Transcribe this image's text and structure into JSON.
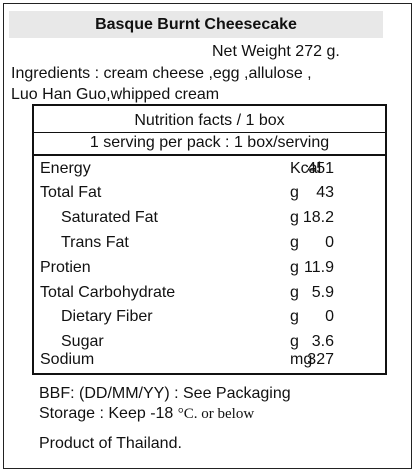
{
  "product": {
    "title": "Basque Burnt Cheesecake",
    "net_weight": "Net Weight 272 g.",
    "ingredients_line1": "Ingredients : cream cheese ,egg ,allulose ,",
    "ingredients_line2": "Luo Han Guo,whipped cream"
  },
  "nutrition": {
    "header1": "Nutrition facts / 1 box",
    "header2": "1 serving per pack : 1 box/serving",
    "rows": [
      {
        "name": "Energy",
        "value": "451",
        "unit": "Kcal"
      },
      {
        "name": "Total Fat",
        "value": "43",
        "unit": "g"
      },
      {
        "name": "Saturated Fat",
        "value": "18.2",
        "unit": "g"
      },
      {
        "name": "Trans Fat",
        "value": "0",
        "unit": "g"
      },
      {
        "name": "Protien",
        "value": "11.9",
        "unit": "g"
      },
      {
        "name": "Total Carbohydrate",
        "value": "5.9",
        "unit": "g"
      },
      {
        "name": "Dietary Fiber",
        "value": "0",
        "unit": "g"
      },
      {
        "name": "Sugar",
        "value": "3.6",
        "unit": "g"
      },
      {
        "name": "Sodium",
        "value": "327",
        "unit": "mg"
      }
    ]
  },
  "footer": {
    "bbf": "BBF: (DD/MM/YY) : See Packaging",
    "storage_prefix": "Storage : Keep -18 ",
    "storage_suffix": "°C. or below",
    "origin": "Product of Thailand."
  }
}
